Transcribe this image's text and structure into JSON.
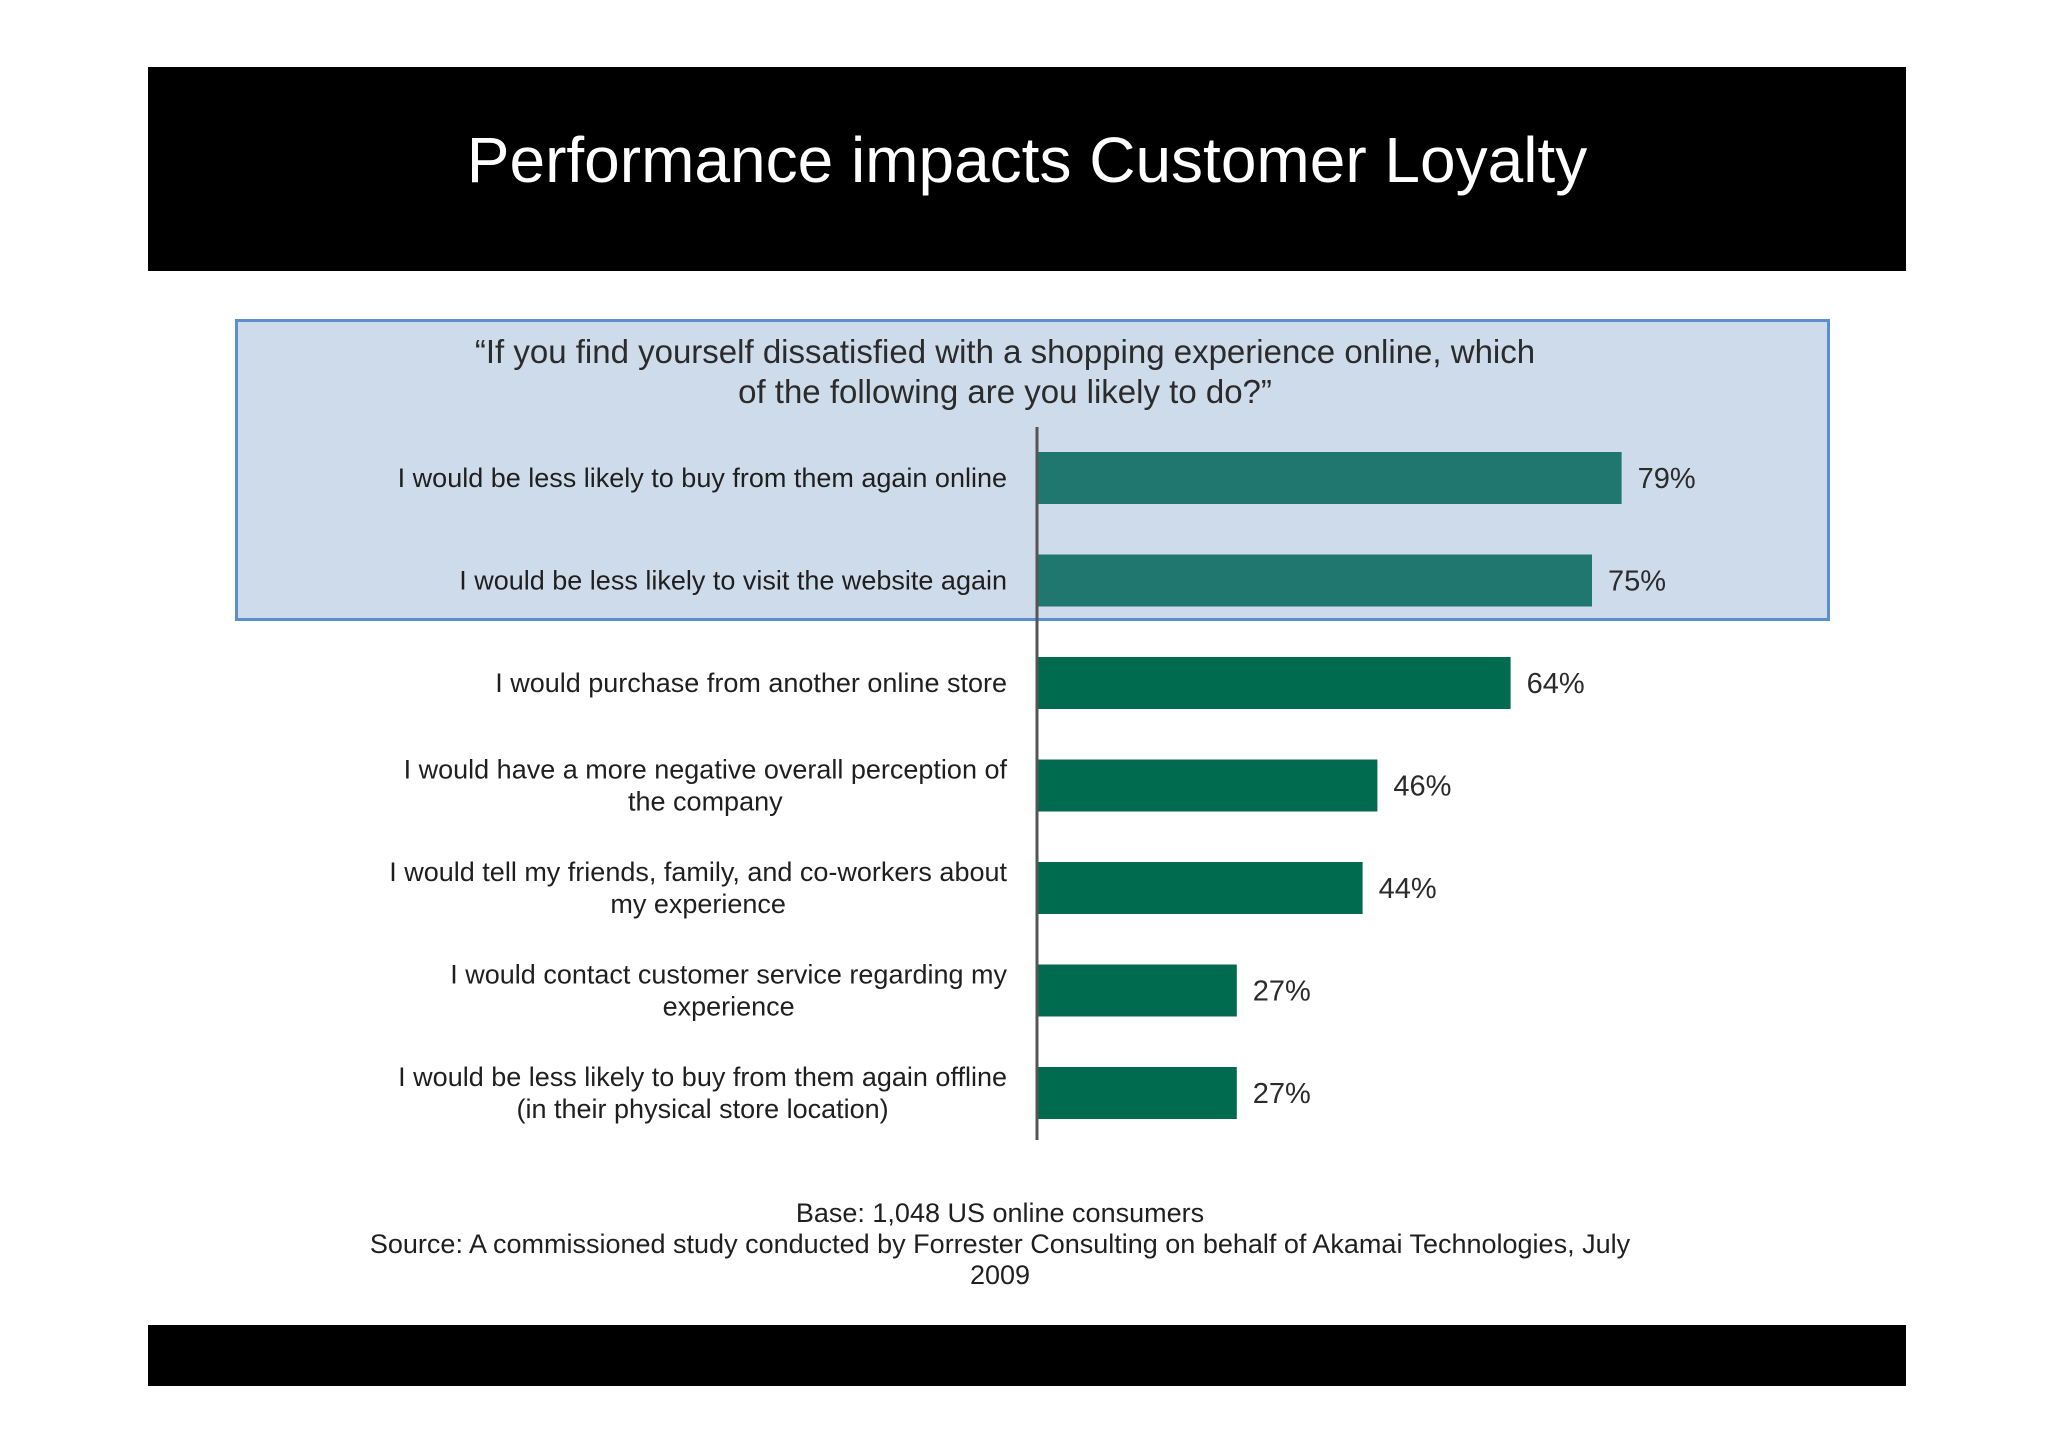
{
  "slide": {
    "title": "Performance impacts Customer Loyalty"
  },
  "chart_data": {
    "type": "bar",
    "orientation": "horizontal",
    "title_lines": [
      "“If you find yourself dissatisfied with a shopping experience online, which",
      "of the following are you likely to do?”"
    ],
    "categories": [
      [
        "I would be less likely to buy from them again online"
      ],
      [
        "I would be less likely to visit the website again"
      ],
      [
        "I would purchase from another online store"
      ],
      [
        "I would have a more negative overall perception of",
        "the company"
      ],
      [
        "I would tell my friends, family, and co-workers about",
        "my experience"
      ],
      [
        "I would contact customer service regarding my",
        "experience"
      ],
      [
        "I would be less likely to buy from them again offline",
        "(in their physical store location)"
      ]
    ],
    "values": [
      79,
      75,
      64,
      46,
      44,
      27,
      27
    ],
    "value_labels": [
      "79%",
      "75%",
      "64%",
      "46%",
      "44%",
      "27%",
      "27%"
    ],
    "unit": "%",
    "xlim": [
      0,
      100
    ],
    "highlighted_count": 2,
    "colors": {
      "highlighted_bar": "#1f7770",
      "bar": "#006b4f",
      "highlight_background": "#cedbea",
      "highlight_border": "#5b8fd0",
      "axis": "#555555"
    },
    "source_lines": [
      "Base: 1,048 US online consumers",
      "Source: A commissioned study conducted by Forrester Consulting on behalf of Akamai Technologies, July",
      "2009"
    ]
  }
}
